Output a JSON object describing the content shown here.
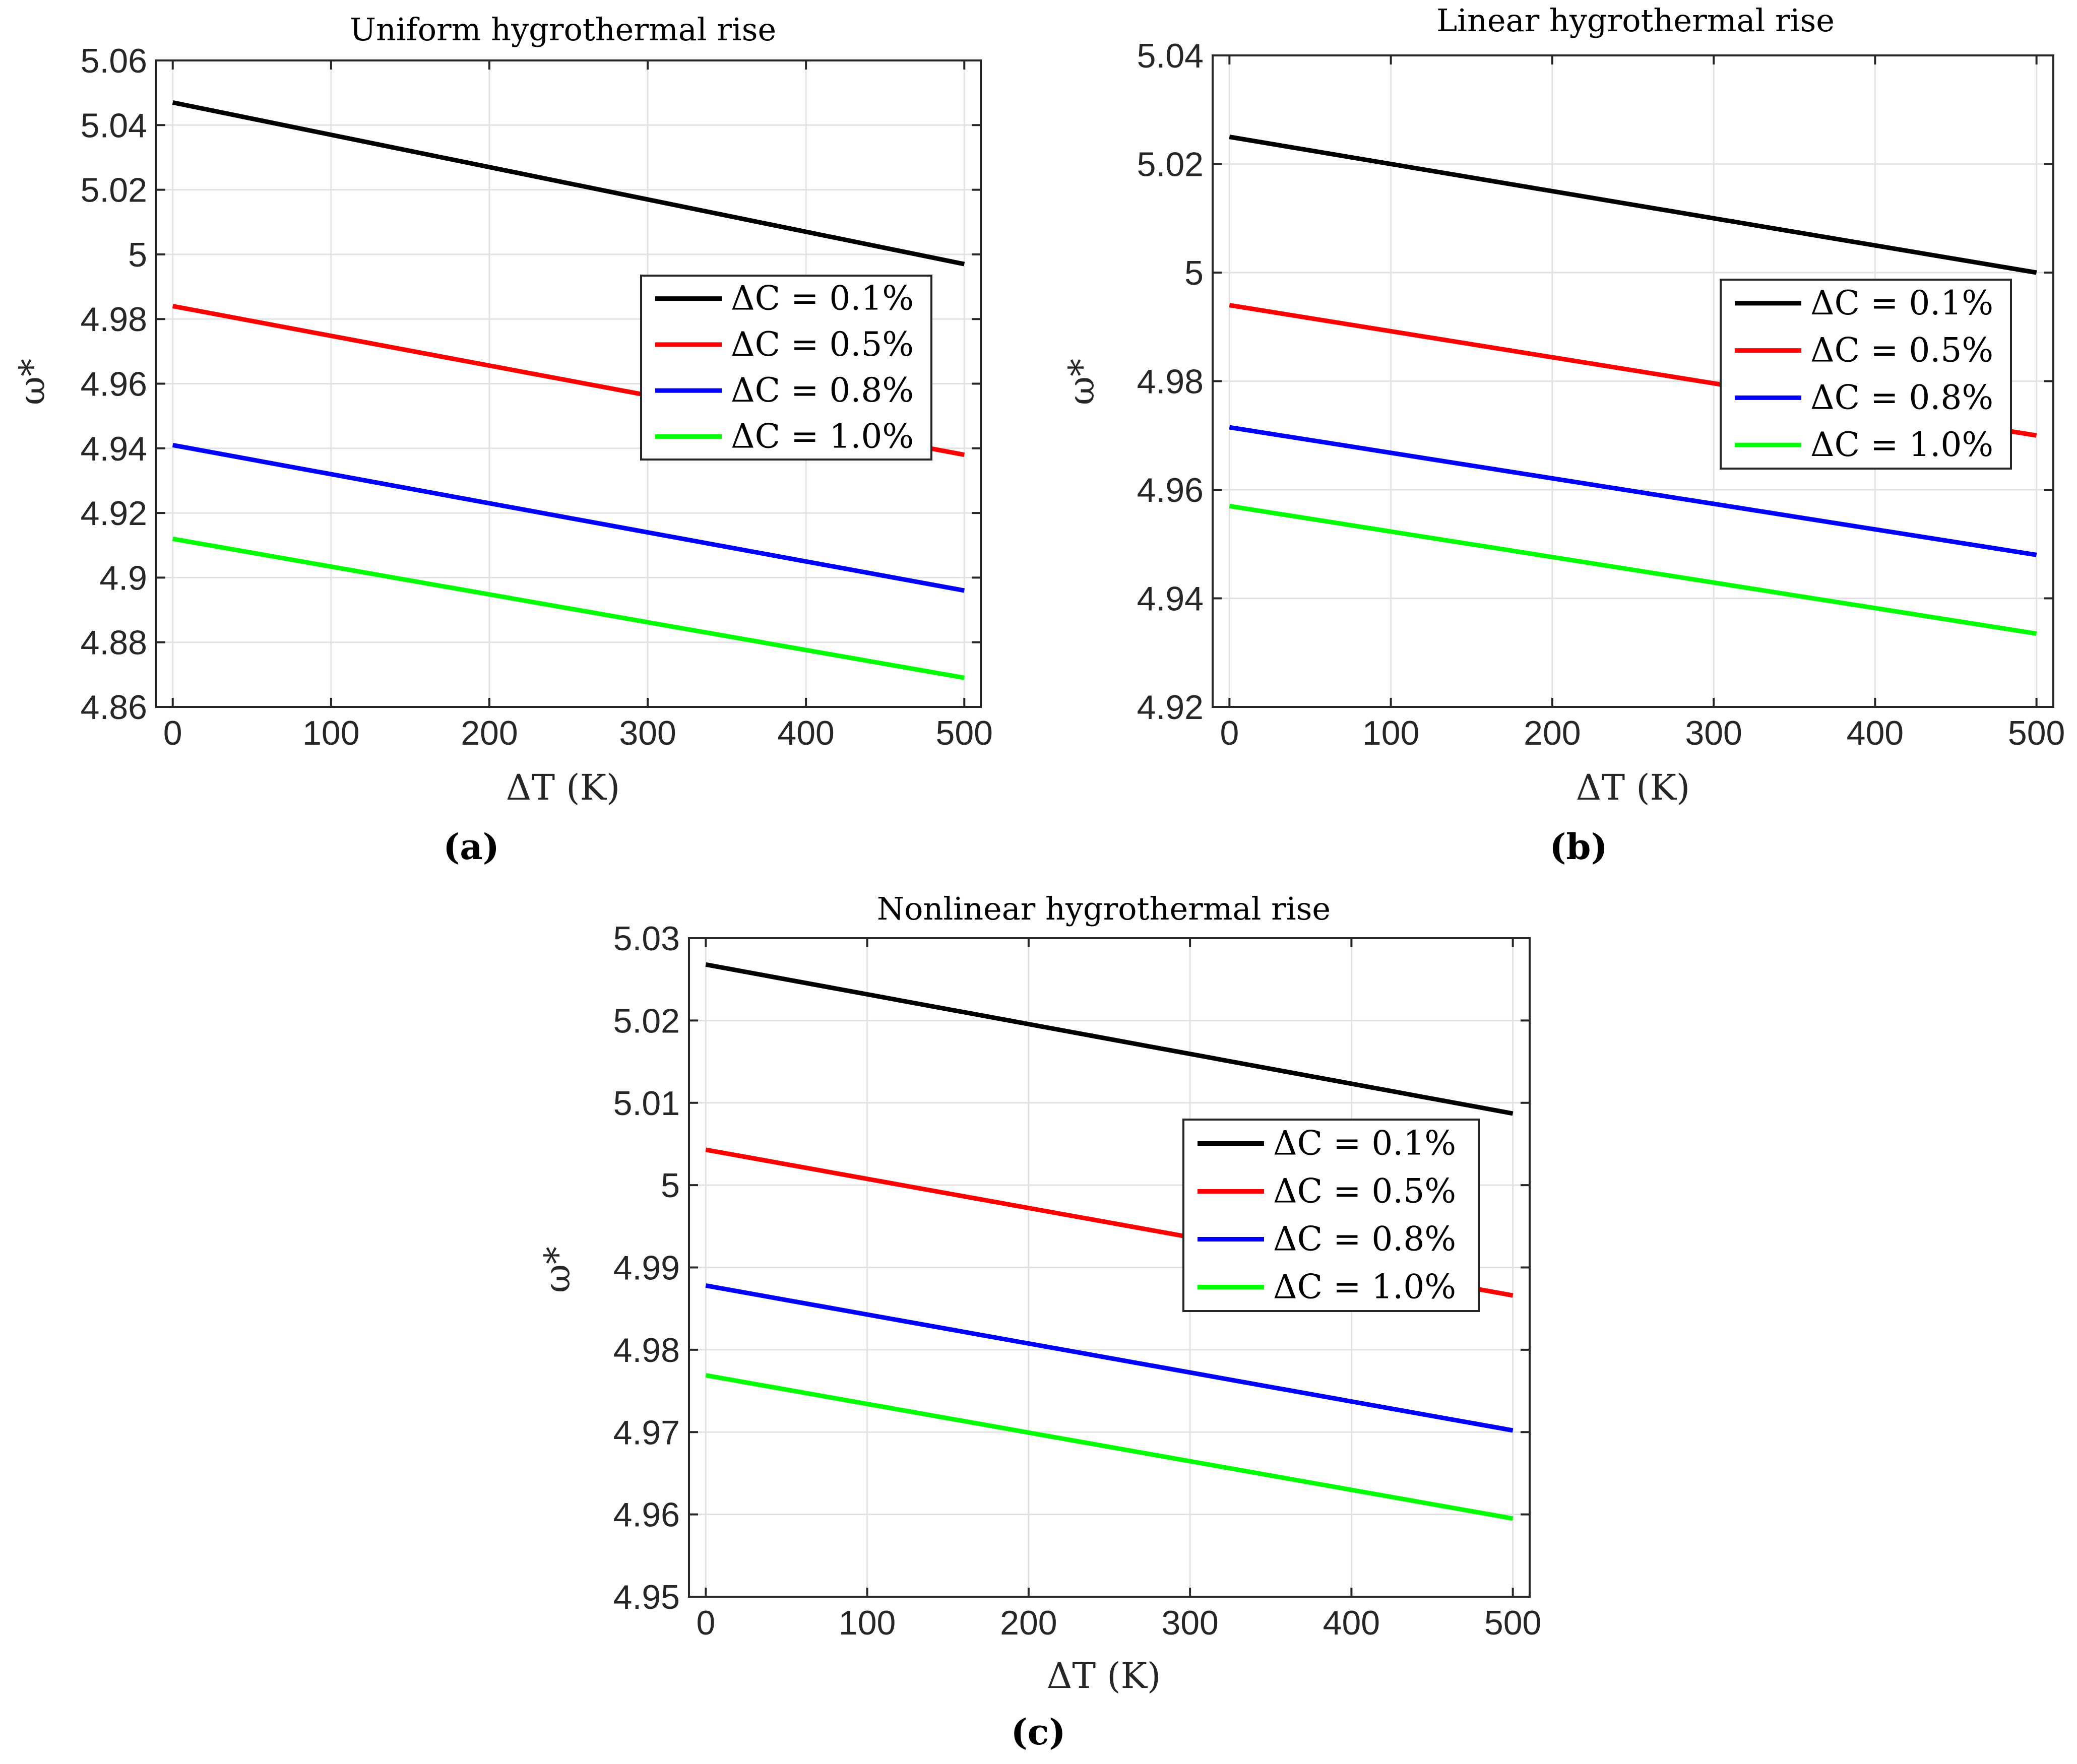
{
  "chart_data": [
    {
      "type": "line",
      "panel_label": "(a)",
      "title": "Uniform hygrothermal rise",
      "xlabel": "ΔT (K)",
      "ylabel": "ω*",
      "xlim": [
        0,
        500
      ],
      "ylim": [
        4.86,
        5.06
      ],
      "xticks": [
        0,
        100,
        200,
        300,
        400,
        500
      ],
      "xtick_labels": [
        "0",
        "100",
        "200",
        "300",
        "400",
        "500"
      ],
      "yticks": [
        4.86,
        4.88,
        4.9,
        4.92,
        4.94,
        4.96,
        4.98,
        5,
        5.02,
        5.04,
        5.06
      ],
      "ytick_labels": [
        "4.86",
        "4.88",
        "4.9",
        "4.92",
        "4.94",
        "4.96",
        "4.98",
        "5",
        "5.02",
        "5.04",
        "5.06"
      ],
      "grid": true,
      "legend_position": "right",
      "x": [
        0,
        500
      ],
      "series": [
        {
          "name": "ΔC = 0.1%",
          "color": "#000000",
          "values": [
            5.047,
            4.997
          ]
        },
        {
          "name": "ΔC = 0.5%",
          "color": "#ff0000",
          "values": [
            4.984,
            4.938
          ]
        },
        {
          "name": "ΔC = 0.8%",
          "color": "#0000ff",
          "values": [
            4.941,
            4.896
          ]
        },
        {
          "name": "ΔC = 1.0%",
          "color": "#00ff00",
          "values": [
            4.912,
            4.869
          ]
        }
      ]
    },
    {
      "type": "line",
      "panel_label": "(b)",
      "title": "Linear hygrothermal rise",
      "xlabel": "ΔT (K)",
      "ylabel": "ω*",
      "xlim": [
        0,
        500
      ],
      "ylim": [
        4.92,
        5.04
      ],
      "xticks": [
        0,
        100,
        200,
        300,
        400,
        500
      ],
      "xtick_labels": [
        "0",
        "100",
        "200",
        "300",
        "400",
        "500"
      ],
      "yticks": [
        4.92,
        4.94,
        4.96,
        4.98,
        5,
        5.02,
        5.04
      ],
      "ytick_labels": [
        "4.92",
        "4.94",
        "4.96",
        "4.98",
        "5",
        "5.02",
        "5.04"
      ],
      "grid": true,
      "legend_position": "right",
      "x": [
        0,
        500
      ],
      "series": [
        {
          "name": "ΔC = 0.1%",
          "color": "#000000",
          "values": [
            5.025,
            5.0
          ]
        },
        {
          "name": "ΔC = 0.5%",
          "color": "#ff0000",
          "values": [
            4.994,
            4.97
          ]
        },
        {
          "name": "ΔC = 0.8%",
          "color": "#0000ff",
          "values": [
            4.9715,
            4.948
          ]
        },
        {
          "name": "ΔC = 1.0%",
          "color": "#00ff00",
          "values": [
            4.957,
            4.9335
          ]
        }
      ]
    },
    {
      "type": "line",
      "panel_label": "(c)",
      "title": "Nonlinear hygrothermal rise",
      "xlabel": "ΔT (K)",
      "ylabel": "ω*",
      "xlim": [
        0,
        500
      ],
      "ylim": [
        4.95,
        5.03
      ],
      "xticks": [
        0,
        100,
        200,
        300,
        400,
        500
      ],
      "xtick_labels": [
        "0",
        "100",
        "200",
        "300",
        "400",
        "500"
      ],
      "yticks": [
        4.95,
        4.96,
        4.97,
        4.98,
        4.99,
        5,
        5.01,
        5.02,
        5.03
      ],
      "ytick_labels": [
        "4.95",
        "4.96",
        "4.97",
        "4.98",
        "4.99",
        "5",
        "5.01",
        "5.02",
        "5.03"
      ],
      "grid": true,
      "legend_position": "right",
      "x": [
        0,
        500
      ],
      "series": [
        {
          "name": "ΔC = 0.1%",
          "color": "#000000",
          "values": [
            5.0268,
            5.0087
          ]
        },
        {
          "name": "ΔC = 0.5%",
          "color": "#ff0000",
          "values": [
            5.0043,
            4.9866
          ]
        },
        {
          "name": "ΔC = 0.8%",
          "color": "#0000ff",
          "values": [
            4.9878,
            4.9702
          ]
        },
        {
          "name": "ΔC = 1.0%",
          "color": "#00ff00",
          "values": [
            4.9769,
            4.9595
          ]
        }
      ]
    }
  ]
}
